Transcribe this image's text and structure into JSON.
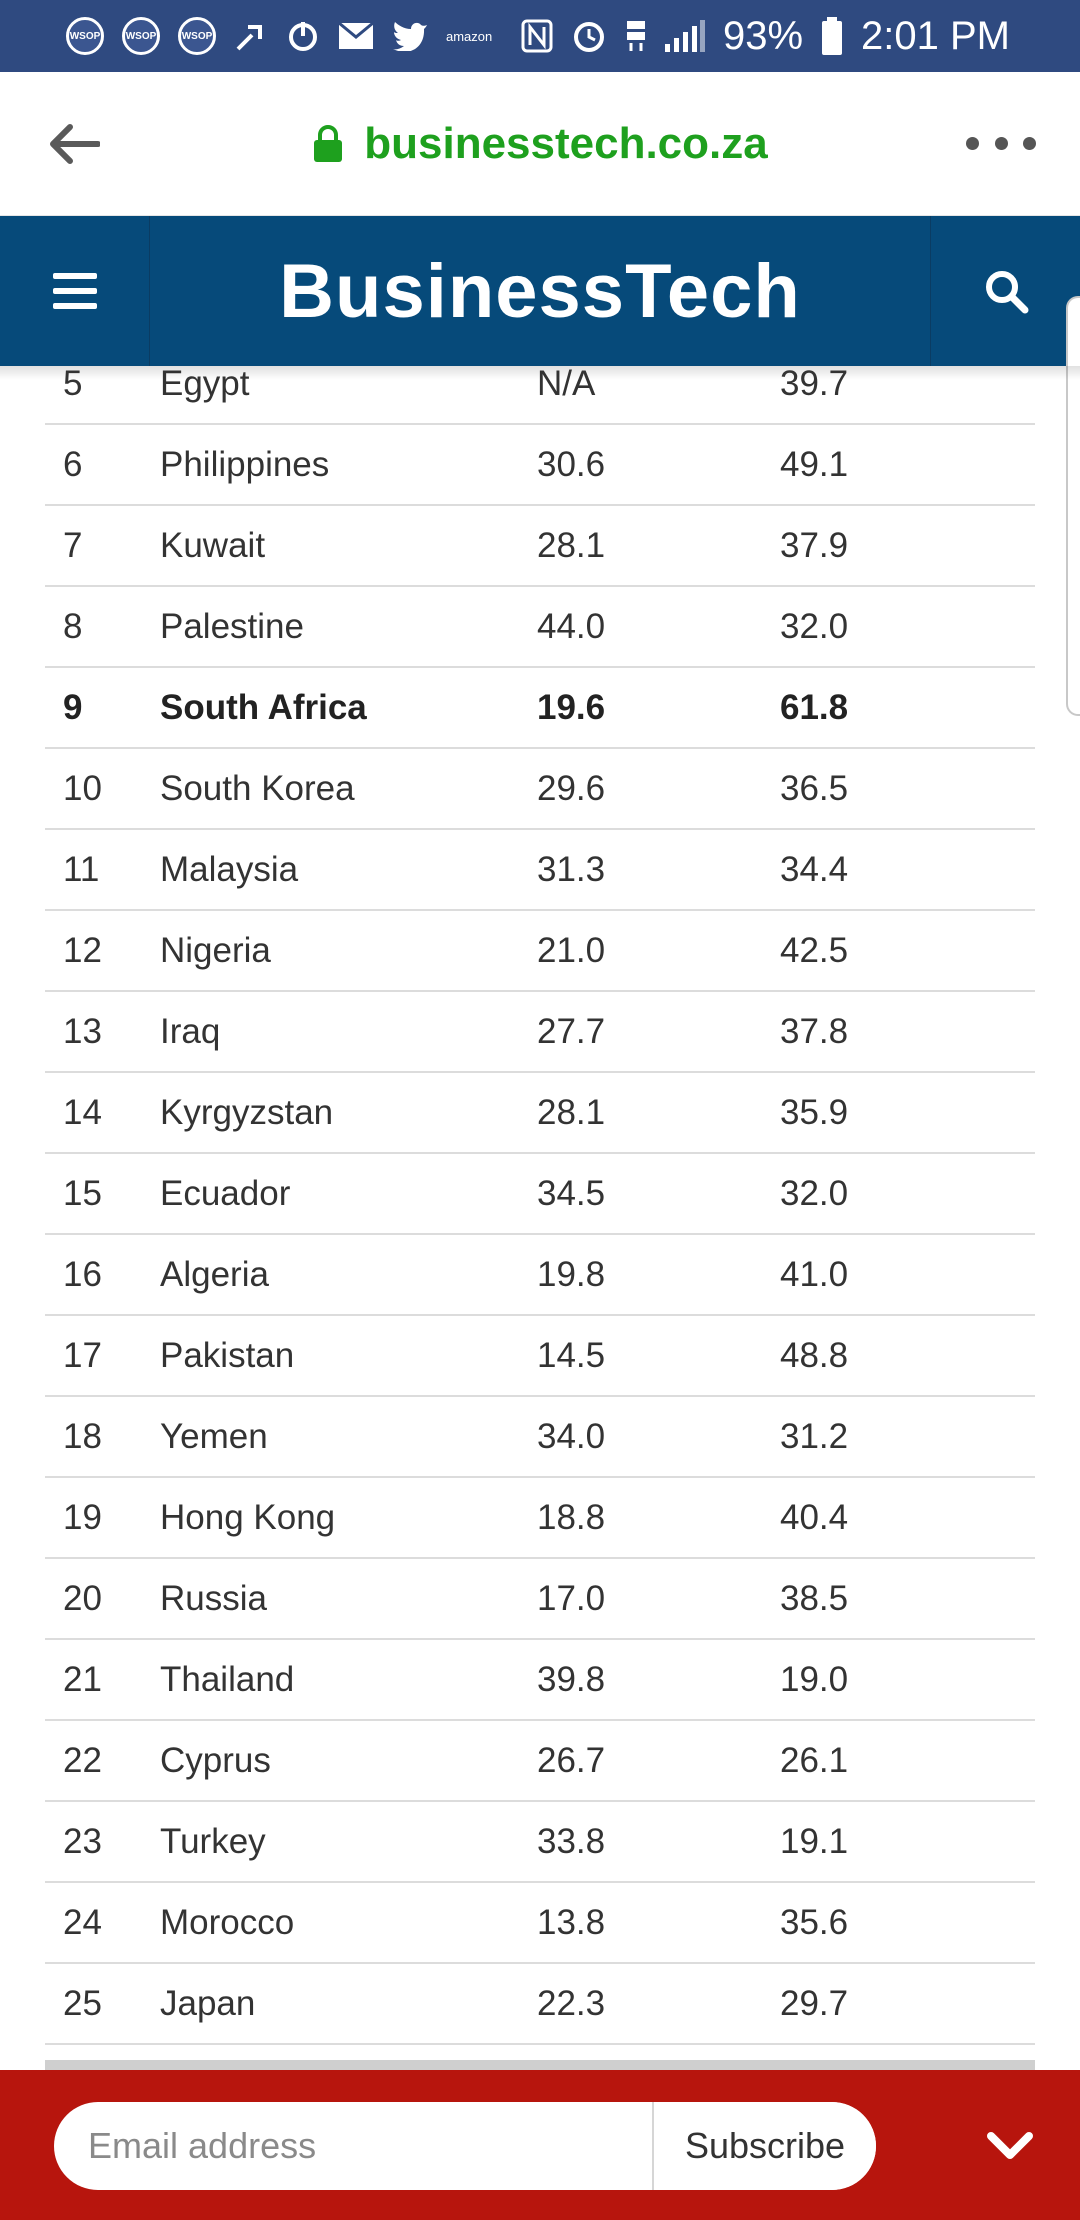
{
  "status_bar": {
    "left_icons": [
      "wsop-icon",
      "wsop-icon",
      "wsop-icon",
      "share-icon",
      "power-icon",
      "mail-icon",
      "twitter-icon",
      "amazon-icon"
    ],
    "wsop_label": "WSOP",
    "amazon_label": "amazon",
    "right_icons": [
      "nfc-icon",
      "alarm-icon",
      "4g-lte-icon",
      "signal-icon",
      "battery-icon"
    ],
    "battery_percent": "93%",
    "time": "2:01 PM"
  },
  "browser": {
    "url": "businesstech.co.za",
    "url_color": "#1ea01e"
  },
  "header": {
    "brand": "BusinessTech",
    "background": "#064a7a"
  },
  "table": {
    "rows": [
      {
        "rank": "5",
        "country": "Egypt",
        "v1": "N/A",
        "v2": "39.7",
        "bold": false
      },
      {
        "rank": "6",
        "country": "Philippines",
        "v1": "30.6",
        "v2": "49.1",
        "bold": false
      },
      {
        "rank": "7",
        "country": "Kuwait",
        "v1": "28.1",
        "v2": "37.9",
        "bold": false
      },
      {
        "rank": "8",
        "country": "Palestine",
        "v1": "44.0",
        "v2": "32.0",
        "bold": false
      },
      {
        "rank": "9",
        "country": "South Africa",
        "v1": "19.6",
        "v2": "61.8",
        "bold": true
      },
      {
        "rank": "10",
        "country": "South Korea",
        "v1": "29.6",
        "v2": "36.5",
        "bold": false
      },
      {
        "rank": "11",
        "country": "Malaysia",
        "v1": "31.3",
        "v2": "34.4",
        "bold": false
      },
      {
        "rank": "12",
        "country": "Nigeria",
        "v1": "21.0",
        "v2": "42.5",
        "bold": false
      },
      {
        "rank": "13",
        "country": "Iraq",
        "v1": "27.7",
        "v2": "37.8",
        "bold": false
      },
      {
        "rank": "14",
        "country": "Kyrgyzstan",
        "v1": "28.1",
        "v2": "35.9",
        "bold": false
      },
      {
        "rank": "15",
        "country": "Ecuador",
        "v1": "34.5",
        "v2": "32.0",
        "bold": false
      },
      {
        "rank": "16",
        "country": "Algeria",
        "v1": "19.8",
        "v2": "41.0",
        "bold": false
      },
      {
        "rank": "17",
        "country": "Pakistan",
        "v1": "14.5",
        "v2": "48.8",
        "bold": false
      },
      {
        "rank": "18",
        "country": "Yemen",
        "v1": "34.0",
        "v2": "31.2",
        "bold": false
      },
      {
        "rank": "19",
        "country": "Hong Kong",
        "v1": "18.8",
        "v2": "40.4",
        "bold": false
      },
      {
        "rank": "20",
        "country": "Russia",
        "v1": "17.0",
        "v2": "38.5",
        "bold": false
      },
      {
        "rank": "21",
        "country": "Thailand",
        "v1": "39.8",
        "v2": "19.0",
        "bold": false
      },
      {
        "rank": "22",
        "country": "Cyprus",
        "v1": "26.7",
        "v2": "26.1",
        "bold": false
      },
      {
        "rank": "23",
        "country": "Turkey",
        "v1": "33.8",
        "v2": "19.1",
        "bold": false
      },
      {
        "rank": "24",
        "country": "Morocco",
        "v1": "13.8",
        "v2": "35.6",
        "bold": false
      },
      {
        "rank": "25",
        "country": "Japan",
        "v1": "22.3",
        "v2": "29.7",
        "bold": false
      }
    ]
  },
  "subscribe": {
    "email_placeholder": "Email address",
    "button_label": "Subscribe",
    "background": "#b7150d"
  }
}
